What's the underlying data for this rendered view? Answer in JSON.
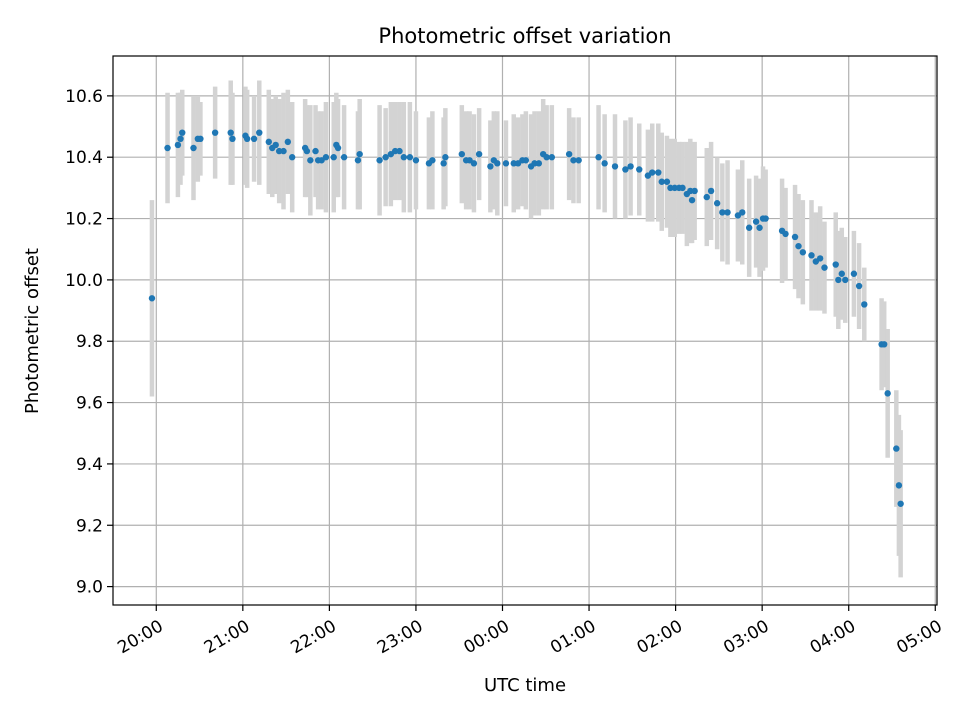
{
  "chart_data": {
    "type": "scatter",
    "title": "Photometric offset variation",
    "xlabel": "UTC time",
    "ylabel": "Photometric offset",
    "x_tick_labels": [
      "20:00",
      "21:00",
      "22:00",
      "23:00",
      "00:00",
      "01:00",
      "02:00",
      "03:00",
      "04:00",
      "05:00"
    ],
    "x_tick_hours": [
      20,
      21,
      22,
      23,
      24,
      25,
      26,
      27,
      28,
      29
    ],
    "xlim_hours": [
      19.5,
      29.02
    ],
    "y_ticks": [
      9.0,
      9.2,
      9.4,
      9.6,
      9.8,
      10.0,
      10.2,
      10.4,
      10.6
    ],
    "ylim": [
      8.94,
      10.73
    ],
    "grid": true,
    "colors": {
      "points": "#1f77b4",
      "errorbars": "#d3d3d3",
      "grid": "#b0b0b0"
    },
    "series": [
      {
        "x_hours": [
          19.95,
          20.13,
          20.25,
          20.28,
          20.3,
          20.43,
          20.48,
          20.51,
          20.68,
          20.86,
          20.88,
          21.03,
          21.05,
          21.13,
          21.19,
          21.3,
          21.34,
          21.38,
          21.42,
          21.47,
          21.52,
          21.57,
          21.72,
          21.74,
          21.78,
          21.84,
          21.87,
          21.91,
          21.96,
          22.05,
          22.08,
          22.1,
          22.17,
          22.33,
          22.35,
          22.58,
          22.65,
          22.71,
          22.76,
          22.81,
          22.86,
          22.93,
          23.0,
          23.15,
          23.19,
          23.32,
          23.34,
          23.53,
          23.58,
          23.62,
          23.67,
          23.73,
          23.86,
          23.9,
          23.94,
          24.04,
          24.13,
          24.18,
          24.23,
          24.27,
          24.33,
          24.37,
          24.42,
          24.47,
          24.51,
          24.57,
          24.77,
          24.82,
          24.88,
          25.11,
          25.18,
          25.3,
          25.42,
          25.48,
          25.58,
          25.68,
          25.73,
          25.8,
          25.84,
          25.9,
          25.94,
          25.99,
          26.04,
          26.08,
          26.13,
          26.17,
          26.19,
          26.22,
          26.36,
          26.41,
          26.48,
          26.54,
          26.6,
          26.72,
          26.77,
          26.85,
          26.93,
          26.97,
          27.01,
          27.04,
          27.23,
          27.27,
          27.38,
          27.42,
          27.47,
          27.57,
          27.62,
          27.67,
          27.72,
          27.85,
          27.88,
          27.92,
          27.96,
          28.06,
          28.12,
          28.18,
          28.38,
          28.41,
          28.45,
          28.55,
          28.58,
          28.6
        ],
        "y": [
          9.94,
          10.43,
          10.44,
          10.46,
          10.48,
          10.43,
          10.46,
          10.46,
          10.48,
          10.48,
          10.46,
          10.47,
          10.46,
          10.46,
          10.48,
          10.45,
          10.43,
          10.44,
          10.42,
          10.42,
          10.45,
          10.4,
          10.43,
          10.42,
          10.39,
          10.42,
          10.39,
          10.39,
          10.4,
          10.4,
          10.44,
          10.43,
          10.4,
          10.39,
          10.41,
          10.39,
          10.4,
          10.41,
          10.42,
          10.42,
          10.4,
          10.4,
          10.39,
          10.38,
          10.39,
          10.38,
          10.4,
          10.41,
          10.39,
          10.39,
          10.38,
          10.41,
          10.37,
          10.39,
          10.38,
          10.38,
          10.38,
          10.38,
          10.39,
          10.39,
          10.37,
          10.38,
          10.38,
          10.41,
          10.4,
          10.4,
          10.41,
          10.39,
          10.39,
          10.4,
          10.38,
          10.37,
          10.36,
          10.37,
          10.36,
          10.34,
          10.35,
          10.35,
          10.32,
          10.32,
          10.3,
          10.3,
          10.3,
          10.3,
          10.28,
          10.29,
          10.26,
          10.29,
          10.27,
          10.29,
          10.25,
          10.22,
          10.22,
          10.21,
          10.22,
          10.17,
          10.19,
          10.17,
          10.2,
          10.2,
          10.16,
          10.15,
          10.14,
          10.11,
          10.09,
          10.08,
          10.06,
          10.07,
          10.04,
          10.05,
          10.0,
          10.02,
          10.0,
          10.02,
          9.98,
          9.92,
          9.79,
          9.79,
          9.63,
          9.45,
          9.33,
          9.27
        ],
        "err": [
          0.32,
          0.18,
          0.17,
          0.15,
          0.14,
          0.17,
          0.14,
          0.12,
          0.15,
          0.17,
          0.15,
          0.16,
          0.16,
          0.14,
          0.17,
          0.17,
          0.16,
          0.16,
          0.17,
          0.19,
          0.17,
          0.18,
          0.16,
          0.15,
          0.18,
          0.15,
          0.16,
          0.16,
          0.18,
          0.18,
          0.17,
          0.16,
          0.17,
          0.16,
          0.18,
          0.18,
          0.16,
          0.17,
          0.16,
          0.16,
          0.18,
          0.18,
          0.16,
          0.15,
          0.16,
          0.15,
          0.16,
          0.16,
          0.16,
          0.16,
          0.16,
          0.15,
          0.15,
          0.16,
          0.17,
          0.14,
          0.16,
          0.15,
          0.15,
          0.16,
          0.17,
          0.17,
          0.17,
          0.18,
          0.17,
          0.17,
          0.15,
          0.14,
          0.14,
          0.17,
          0.16,
          0.17,
          0.16,
          0.16,
          0.15,
          0.15,
          0.16,
          0.16,
          0.16,
          0.15,
          0.16,
          0.16,
          0.15,
          0.15,
          0.17,
          0.17,
          0.14,
          0.16,
          0.16,
          0.16,
          0.15,
          0.16,
          0.17,
          0.15,
          0.17,
          0.16,
          0.15,
          0.16,
          0.17,
          0.16,
          0.17,
          0.15,
          0.17,
          0.17,
          0.17,
          0.18,
          0.16,
          0.17,
          0.15,
          0.17,
          0.16,
          0.15,
          0.14,
          0.14,
          0.14,
          0.12,
          0.15,
          0.14,
          0.21,
          0.19,
          0.23,
          0.24
        ]
      }
    ]
  }
}
